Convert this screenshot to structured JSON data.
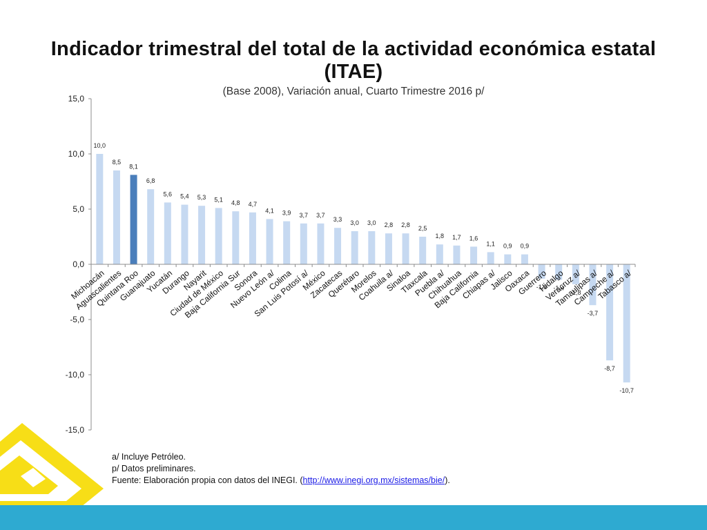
{
  "page": {
    "title_line1": "Indicador trimestral del total de la actividad económica estatal",
    "title_line2": "(ITAE)",
    "subtitle": "(Base 2008), Variación anual,  Cuarto Trimestre 2016 p/"
  },
  "notes": {
    "line1": "a/ Incluye Petróleo.",
    "line2": "p/ Datos preliminares.",
    "line3_prefix": "Fuente: Elaboración propia con datos del INEGI. (",
    "link": "http://www.inegi.org.mx/sistemas/bie/",
    "line3_suffix": ")."
  },
  "colors": {
    "bar": "#c6d9f1",
    "highlight": "#4a7ebb",
    "accent_yellow": "#f7de17",
    "footer_band": "#2eaad1"
  },
  "chart_data": {
    "type": "bar",
    "title": "Indicador trimestral del total de la actividad económica estatal (ITAE)",
    "subtitle": "(Base 2008), Variación anual,  Cuarto Trimestre 2016 p/",
    "categories": [
      "Michoacán",
      "Aguascalientes",
      "Quintana Roo",
      "Guanajuato",
      "Yucatán",
      "Durango",
      "Nayarit",
      "Ciudad de México",
      "Baja California Sur",
      "Sonora",
      "Nuevo León a/",
      "Colima",
      "San Luis Potosí a/",
      "México",
      "Zacatecas",
      "Querétaro",
      "Morelos",
      "Coahuila a/",
      "Sinaloa",
      "Tlaxcala",
      "Puebla a/",
      "Chihuahua",
      "Baja California",
      "Chiapas a/",
      "Jalisco",
      "Oaxaca",
      "Guerrero",
      "Hidalgo",
      "Veracruz a/",
      "Tamaulipas a/",
      "Campeche a/",
      "Tabasco a/"
    ],
    "values": [
      10.0,
      8.5,
      8.1,
      6.8,
      5.6,
      5.4,
      5.3,
      5.1,
      4.8,
      4.7,
      4.1,
      3.9,
      3.7,
      3.7,
      3.3,
      3.0,
      3.0,
      2.8,
      2.8,
      2.5,
      1.8,
      1.7,
      1.6,
      1.1,
      0.9,
      0.9,
      -1.3,
      -1.4,
      -1.8,
      -3.7,
      -8.7,
      -10.7
    ],
    "value_labels": [
      "10,0",
      "8,5",
      "8,1",
      "6,8",
      "5,6",
      "5,4",
      "5,3",
      "5,1",
      "4,8",
      "4,7",
      "4,1",
      "3,9",
      "3,7",
      "3,7",
      "3,3",
      "3,0",
      "3,0",
      "2,8",
      "2,8",
      "2,5",
      "1,8",
      "1,7",
      "1,6",
      "1,1",
      "0,9",
      "0,9",
      "-1,3",
      "-1,4",
      "-1,8",
      "-3,7",
      "-8,7",
      "-10,7"
    ],
    "highlight_category": "Quintana Roo",
    "y_ticks": [
      15,
      10,
      5,
      0,
      -5,
      -10,
      -15
    ],
    "y_tick_labels": [
      "15,0",
      "10,0",
      "5,0",
      "0,0",
      "-5,0",
      "-10,0",
      "-15,0"
    ],
    "ylim": [
      -15,
      15
    ],
    "grid": false,
    "legend": "none"
  }
}
